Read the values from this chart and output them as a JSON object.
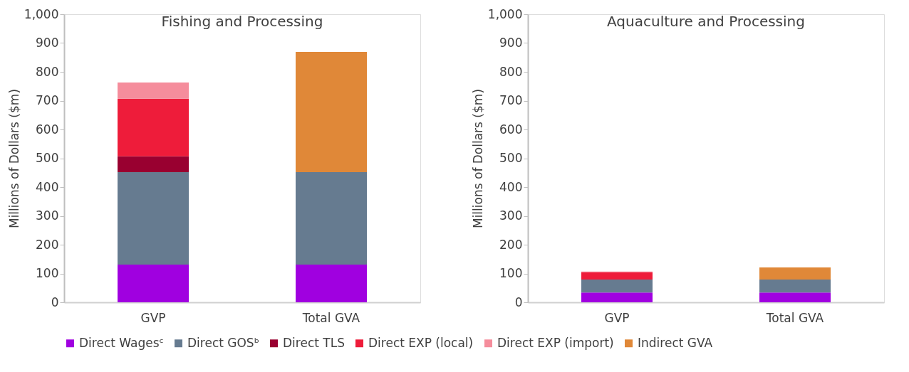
{
  "chart_data": [
    {
      "type": "bar",
      "title": "Fishing and Processing",
      "ylabel": "Millions of Dollars ($m)",
      "categories": [
        "GVP",
        "Total GVA"
      ],
      "stacked": true,
      "legend": "bottom",
      "ylim": [
        0,
        1000
      ],
      "yticks": [
        0,
        100,
        200,
        300,
        400,
        500,
        600,
        700,
        800,
        900,
        {
          "value": 1000,
          "label": "1,000"
        }
      ],
      "series": [
        {
          "name": "Direct Wagesᶜ",
          "color": "#a000e0",
          "values": [
            131,
            131
          ]
        },
        {
          "name": "Direct GOSᵇ",
          "color": "#667b90",
          "values": [
            321,
            321
          ]
        },
        {
          "name": "Direct TLS",
          "color": "#990030",
          "values": [
            55,
            null
          ]
        },
        {
          "name": "Direct EXP (local)",
          "color": "#ee1c3a",
          "values": [
            200,
            null
          ]
        },
        {
          "name": "Direct EXP (import)",
          "color": "#f58d9c",
          "values": [
            56,
            null
          ]
        },
        {
          "name": "Indirect GVA",
          "color": "#e08838",
          "values": [
            null,
            417
          ]
        }
      ]
    },
    {
      "type": "bar",
      "title": "Aquaculture and Processing",
      "ylabel": "Millions of Dollars ($m)",
      "categories": [
        "GVP",
        "Total GVA"
      ],
      "stacked": true,
      "ylim": [
        0,
        1000
      ],
      "yticks": [
        0,
        100,
        200,
        300,
        400,
        500,
        600,
        700,
        800,
        900,
        {
          "value": 1000,
          "label": "1,000"
        }
      ],
      "series": [
        {
          "color": "#a000e0",
          "values": [
            34,
            34
          ]
        },
        {
          "color": "#667b90",
          "values": [
            45,
            45
          ]
        },
        {
          "color": "#ee1c3a",
          "values": [
            25,
            null
          ]
        },
        {
          "color": "#f58d9c",
          "values": [
            3,
            null
          ]
        },
        {
          "color": "#e08838",
          "values": [
            null,
            42
          ]
        }
      ]
    }
  ]
}
